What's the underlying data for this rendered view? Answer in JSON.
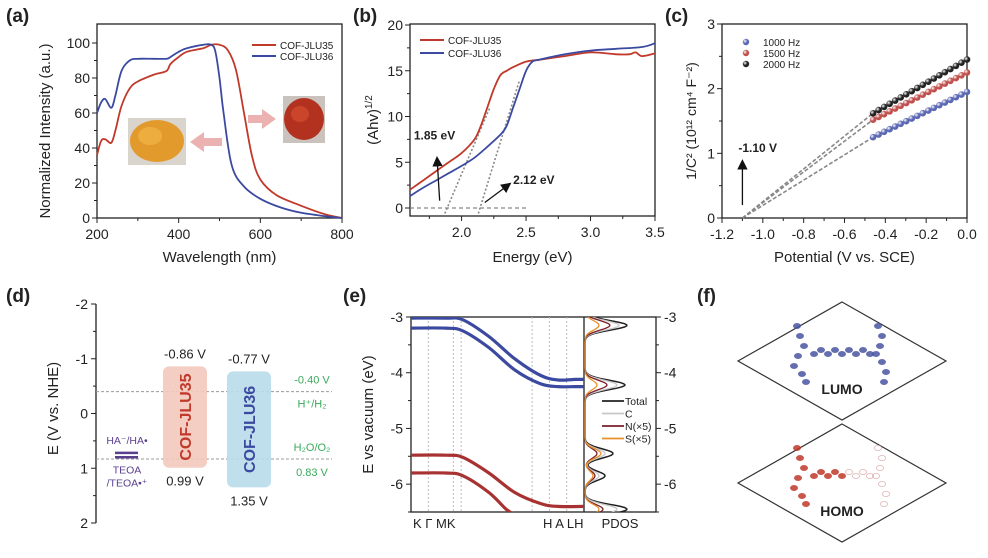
{
  "chart_data": [
    {
      "id": "a",
      "panel_label": "(a)",
      "type": "line",
      "title": "",
      "xlabel": "Wavelength (nm)",
      "ylabel": "Normalized Intensity (a.u.)",
      "xlim": [
        200,
        800
      ],
      "ylim": [
        0,
        110
      ],
      "xticks": [
        200,
        400,
        600,
        800
      ],
      "xtick_labels": [
        "200",
        "400",
        "600",
        "800"
      ],
      "yticks": [
        0,
        20,
        40,
        60,
        80,
        100
      ],
      "ytick_labels": [
        "0",
        "20",
        "40",
        "60",
        "80",
        "100"
      ],
      "legend_position": "top-right",
      "series": [
        {
          "name": "COF-JLU35",
          "color": "#c0392b",
          "x": [
            200,
            210,
            220,
            235,
            245,
            260,
            280,
            300,
            340,
            370,
            380,
            400,
            420,
            460,
            480,
            500,
            520,
            540,
            560,
            580,
            600,
            640,
            700,
            760,
            800
          ],
          "y": [
            36,
            44,
            45,
            43,
            50,
            64,
            74,
            78,
            82,
            84,
            88,
            92,
            95,
            97,
            99,
            99,
            96,
            85,
            60,
            35,
            22,
            13,
            7,
            2,
            0
          ]
        },
        {
          "name": "COF-JLU36",
          "color": "#3b4aa0",
          "x": [
            200,
            210,
            220,
            235,
            245,
            260,
            280,
            300,
            340,
            370,
            380,
            400,
            420,
            460,
            480,
            490,
            500,
            510,
            530,
            560,
            600,
            650,
            700,
            760,
            800
          ],
          "y": [
            60,
            66,
            68,
            63,
            70,
            84,
            90,
            91,
            91,
            91,
            92,
            95,
            97,
            99,
            99,
            95,
            80,
            60,
            30,
            18,
            11,
            6,
            3,
            1,
            0
          ]
        }
      ],
      "annotations": [
        {
          "type": "image",
          "description": "orange powder photo (COF-JLU36)"
        },
        {
          "type": "image",
          "description": "red powder photo (COF-JLU35)"
        }
      ]
    },
    {
      "id": "b",
      "panel_label": "(b)",
      "type": "line",
      "title": "",
      "xlabel": "Energy (eV)",
      "ylabel": "(Ahv)",
      "ylabel_sup": "1/2",
      "xlim": [
        1.6,
        3.5
      ],
      "ylim": [
        -1,
        20
      ],
      "xticks": [
        2.0,
        2.5,
        3.0,
        3.5
      ],
      "xtick_labels": [
        "2.0",
        "2.5",
        "3.0",
        "3.5"
      ],
      "yticks": [
        0,
        5,
        10,
        15,
        20
      ],
      "ytick_labels": [
        "0",
        "5",
        "10",
        "15",
        "20"
      ],
      "legend_position": "top-left",
      "series": [
        {
          "name": "COF-JLU35",
          "color": "#c0392b",
          "x": [
            1.6,
            1.7,
            1.8,
            1.9,
            2.0,
            2.1,
            2.15,
            2.2,
            2.25,
            2.3,
            2.35,
            2.4,
            2.5,
            2.6,
            2.8,
            3.0,
            3.2,
            3.3,
            3.35,
            3.4,
            3.5
          ],
          "y": [
            2,
            3,
            4,
            5,
            6,
            7.5,
            9,
            11,
            13,
            14.5,
            15,
            15.4,
            16,
            16.2,
            16.6,
            17,
            16.8,
            16.8,
            17,
            16.6,
            16.9
          ]
        },
        {
          "name": "COF-JLU36",
          "color": "#3b4aa0",
          "x": [
            1.6,
            1.7,
            1.8,
            1.9,
            2.0,
            2.1,
            2.2,
            2.3,
            2.35,
            2.4,
            2.45,
            2.5,
            2.55,
            2.6,
            2.8,
            3.0,
            3.2,
            3.4,
            3.5
          ],
          "y": [
            1.3,
            2.2,
            3,
            3.8,
            4.6,
            5.5,
            6.7,
            8,
            9,
            11,
            13,
            15,
            16,
            16.2,
            16.8,
            17.2,
            17.4,
            17.6,
            18
          ]
        }
      ],
      "annotations": [
        {
          "text": "1.85 eV",
          "x": 1.85
        },
        {
          "text": "2.12 eV",
          "x": 2.12
        }
      ]
    },
    {
      "id": "c",
      "panel_label": "(c)",
      "type": "scatter",
      "title": "",
      "xlabel": "Potential (V vs. SCE)",
      "ylabel": "1/C² (10¹² cm⁴ F⁻²)",
      "xlim": [
        -1.2,
        0.0
      ],
      "ylim": [
        0,
        3
      ],
      "xticks": [
        -1.2,
        -1.0,
        -0.8,
        -0.6,
        -0.4,
        -0.2,
        0.0
      ],
      "xtick_labels": [
        "-1.2",
        "-1.0",
        "-0.8",
        "-0.6",
        "-0.4",
        "-0.2",
        "0.0"
      ],
      "yticks": [
        0,
        1,
        2,
        3
      ],
      "ytick_labels": [
        "0",
        "1",
        "2",
        "3"
      ],
      "legend_position": "top-left",
      "series": [
        {
          "name": "1000 Hz",
          "color": "#5b67b3",
          "x_start": -0.46,
          "x_end": 0.0,
          "y_start": 1.25,
          "y_end": 1.95,
          "points": 18
        },
        {
          "name": "1500 Hz",
          "color": "#c0504d",
          "x_start": -0.46,
          "x_end": 0.0,
          "y_start": 1.52,
          "y_end": 2.25,
          "points": 18
        },
        {
          "name": "2000 Hz",
          "color": "#222222",
          "x_start": -0.46,
          "x_end": 0.0,
          "y_start": 1.62,
          "y_end": 2.45,
          "points": 18
        }
      ],
      "fit_intercept_x": -1.1,
      "annotations": [
        {
          "text": "-1.10 V",
          "x": -1.1
        }
      ]
    },
    {
      "id": "d",
      "panel_label": "(d)",
      "type": "bar",
      "title": "",
      "ylabel": "E (V vs. NHE)",
      "ylim": [
        -2,
        2
      ],
      "y_inverted": true,
      "yticks": [
        -2,
        -1,
        0,
        1,
        2
      ],
      "ytick_labels": [
        "-2",
        "-1",
        "0",
        "1",
        "2"
      ],
      "bands": [
        {
          "name": "COF-JLU35",
          "cb": -0.86,
          "vb": 0.99,
          "cb_label": "-0.86 V",
          "vb_label": "0.99 V",
          "fill": "#f3c9bd",
          "text_color": "#c0392b"
        },
        {
          "name": "COF-JLU36",
          "cb": -0.77,
          "vb": 1.35,
          "cb_label": "-0.77 V",
          "vb_label": "1.35 V",
          "fill": "#b9dcea",
          "text_color": "#3b4aa0"
        }
      ],
      "reference_lines": [
        {
          "value": -0.4,
          "value_label": "-0.40 V",
          "couple": "H⁺/H₂",
          "color": "#3aaa5c"
        },
        {
          "value": 0.83,
          "value_label": "0.83 V",
          "couple": "H₂O/O₂",
          "color": "#3aaa5c"
        }
      ],
      "donor_levels": [
        {
          "label": "HA⁻/HA•",
          "value": 0.72
        },
        {
          "label": "TEOA",
          "label2": "/TEOA•⁺",
          "value": 0.8
        }
      ],
      "donor_color": "#5b3f8f"
    },
    {
      "id": "e",
      "panel_label": "(e)",
      "type": "line",
      "title": "",
      "ylabel": "E vs vacuum (eV)",
      "ylim": [
        -6.5,
        -3
      ],
      "yticks": [
        -3,
        -4,
        -5,
        -6
      ],
      "ytick_labels": [
        "-3",
        "-4",
        "-5",
        "-6"
      ],
      "kpath_labels": [
        "K Γ MK",
        "H A LH"
      ],
      "pdos_label": "PDOS",
      "bands": [
        {
          "name": "CB1",
          "color": "#3b4aa0",
          "x": [
            0,
            0.2,
            0.3,
            0.45,
            0.6,
            0.75,
            0.85,
            0.95,
            1.0
          ],
          "y": [
            -3.02,
            -3.02,
            -3.05,
            -3.35,
            -3.75,
            -4.05,
            -4.13,
            -4.12,
            -4.12
          ]
        },
        {
          "name": "CB2",
          "color": "#3b4aa0",
          "x": [
            0,
            0.2,
            0.3,
            0.45,
            0.6,
            0.75,
            0.85,
            0.95,
            1.0
          ],
          "y": [
            -3.2,
            -3.2,
            -3.25,
            -3.55,
            -3.95,
            -4.2,
            -4.25,
            -4.25,
            -4.25
          ]
        },
        {
          "name": "VB1",
          "color": "#a83232",
          "x": [
            0,
            0.2,
            0.3,
            0.45,
            0.6,
            0.75,
            0.85,
            1.0
          ],
          "y": [
            -5.48,
            -5.48,
            -5.52,
            -5.8,
            -6.15,
            -6.35,
            -6.4,
            -6.4
          ]
        },
        {
          "name": "VB2",
          "color": "#a83232",
          "x": [
            0,
            0.2,
            0.3,
            0.45,
            0.55,
            0.6
          ],
          "y": [
            -5.8,
            -5.8,
            -5.85,
            -6.15,
            -6.45,
            -6.55
          ]
        }
      ],
      "legend": [
        {
          "name": "Total",
          "color": "#222222"
        },
        {
          "name": "C",
          "color": "#c8c8c8"
        },
        {
          "name": "N(×5)",
          "color": "#7a1f2b"
        },
        {
          "name": "S(×5)",
          "color": "#e8902c"
        }
      ]
    },
    {
      "id": "f",
      "panel_label": "(f)",
      "type": "table",
      "labels": [
        "LUMO",
        "HOMO"
      ],
      "colors": {
        "LUMO": "#4a55a2",
        "HOMO": "#c0392b"
      }
    }
  ]
}
